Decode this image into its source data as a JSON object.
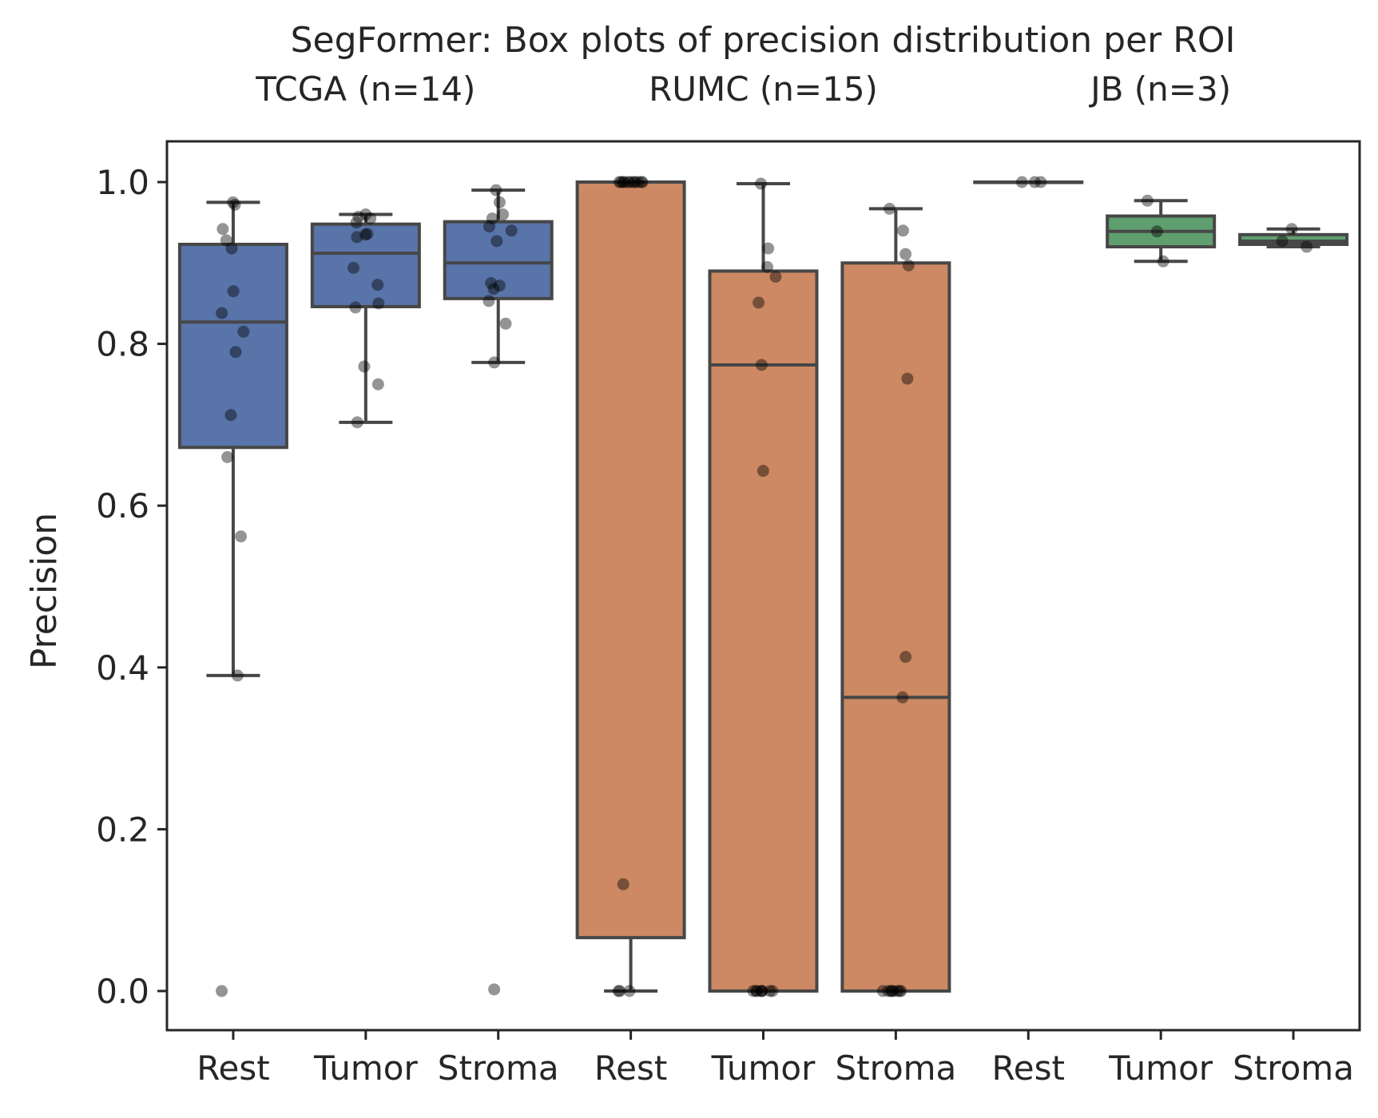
{
  "chart_data": {
    "type": "box",
    "title": "SegFormer: Box plots of precision distribution per ROI",
    "ylabel": "Precision",
    "xlabel": "",
    "ylim": [
      -0.05,
      1.05
    ],
    "yticks": [
      0.0,
      0.2,
      0.4,
      0.6,
      0.8,
      1.0
    ],
    "ytick_labels": [
      "0.0",
      "0.2",
      "0.4",
      "0.6",
      "0.8",
      "1.0"
    ],
    "grid": false,
    "groups": [
      {
        "label": "TCGA (n=14)",
        "color": "#5874a8"
      },
      {
        "label": "RUMC (n=15)",
        "color": "#cc8963"
      },
      {
        "label": "JB (n=3)",
        "color": "#5f9e6e"
      }
    ],
    "boxes": [
      {
        "group": 0,
        "label": "Rest",
        "whislo": 0.39,
        "q1": 0.672,
        "median": 0.827,
        "q3": 0.923,
        "whishi": 0.975,
        "points": [
          0.975,
          0.972,
          0.942,
          0.928,
          0.918,
          0.865,
          0.838,
          0.815,
          0.79,
          0.712,
          0.66,
          0.562,
          0.39,
          0.0
        ]
      },
      {
        "group": 0,
        "label": "Tumor",
        "whislo": 0.703,
        "q1": 0.846,
        "median": 0.912,
        "q3": 0.948,
        "whishi": 0.96,
        "points": [
          0.96,
          0.957,
          0.955,
          0.95,
          0.936,
          0.935,
          0.932,
          0.894,
          0.873,
          0.85,
          0.845,
          0.772,
          0.75,
          0.703
        ]
      },
      {
        "group": 0,
        "label": "Stroma",
        "whislo": 0.777,
        "q1": 0.856,
        "median": 0.9,
        "q3": 0.951,
        "whishi": 0.99,
        "points": [
          0.99,
          0.975,
          0.96,
          0.955,
          0.945,
          0.94,
          0.927,
          0.875,
          0.872,
          0.868,
          0.853,
          0.825,
          0.777,
          0.002
        ]
      },
      {
        "group": 1,
        "label": "Rest",
        "whislo": 0.0,
        "q1": 0.066,
        "median": 1.0,
        "q3": 1.0,
        "whishi": 1.0,
        "points": [
          1.0,
          1.0,
          1.0,
          1.0,
          1.0,
          1.0,
          1.0,
          1.0,
          1.0,
          1.0,
          1.0,
          0.132,
          0.0,
          0.0,
          0.0
        ]
      },
      {
        "group": 1,
        "label": "Tumor",
        "whislo": 0.0,
        "q1": 0.0,
        "median": 0.774,
        "q3": 0.89,
        "whishi": 0.998,
        "points": [
          0.998,
          0.918,
          0.895,
          0.883,
          0.851,
          0.774,
          0.643,
          0.0,
          0.0,
          0.0,
          0.0,
          0.0,
          0.0,
          0.0,
          0.0
        ]
      },
      {
        "group": 1,
        "label": "Stroma",
        "whislo": 0.0,
        "q1": 0.0,
        "median": 0.363,
        "q3": 0.9,
        "whishi": 0.967,
        "points": [
          0.967,
          0.94,
          0.911,
          0.897,
          0.757,
          0.413,
          0.363,
          0.0,
          0.0,
          0.0,
          0.0,
          0.0,
          0.0,
          0.0,
          0.0
        ]
      },
      {
        "group": 2,
        "label": "Rest",
        "whislo": 1.0,
        "q1": 1.0,
        "median": 1.0,
        "q3": 1.0,
        "whishi": 1.0,
        "points": [
          1.0,
          1.0,
          1.0
        ]
      },
      {
        "group": 2,
        "label": "Tumor",
        "whislo": 0.902,
        "q1": 0.92,
        "median": 0.939,
        "q3": 0.958,
        "whishi": 0.977,
        "points": [
          0.977,
          0.939,
          0.902
        ]
      },
      {
        "group": 2,
        "label": "Stroma",
        "whislo": 0.92,
        "q1": 0.923,
        "median": 0.927,
        "q3": 0.935,
        "whishi": 0.942,
        "points": [
          0.942,
          0.927,
          0.92
        ]
      }
    ]
  }
}
